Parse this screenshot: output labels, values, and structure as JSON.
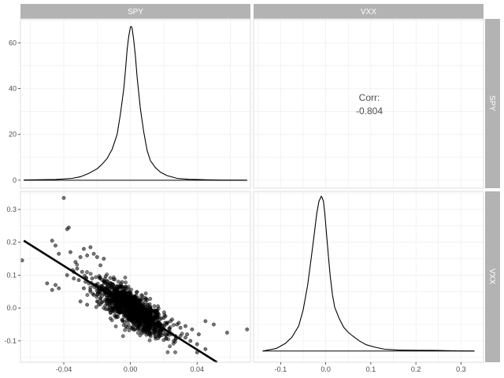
{
  "chart_data": {
    "type": "pairs",
    "variables": [
      "SPY",
      "VXX"
    ],
    "colors": {
      "strip": "#b3b3b3",
      "strip_text": "#ffffff",
      "panel_border": "#dddddd",
      "grid": "#ebebeb",
      "line": "#000000",
      "point": "#000000"
    },
    "panels": {
      "spy_density": {
        "type": "line",
        "xlim": [
          -0.066,
          0.072
        ],
        "ylim": [
          -3.5,
          70.5
        ],
        "yticks": [
          0,
          20,
          40,
          60
        ],
        "ytick_labels": [
          "0",
          "20",
          "40",
          "60"
        ],
        "x": [
          -0.064,
          -0.045,
          -0.035,
          -0.03,
          -0.025,
          -0.02,
          -0.017,
          -0.014,
          -0.011,
          -0.008,
          -0.006,
          -0.004,
          -0.003,
          -0.002,
          -0.001,
          0.0,
          0.0005,
          0.001,
          0.002,
          0.003,
          0.004,
          0.005,
          0.006,
          0.008,
          0.01,
          0.012,
          0.015,
          0.018,
          0.022,
          0.028,
          0.035,
          0.045,
          0.055,
          0.07
        ],
        "y": [
          0.1,
          0.3,
          0.8,
          1.5,
          3.0,
          5.0,
          7.0,
          9.5,
          13.5,
          20.0,
          29.0,
          40.0,
          48.0,
          57.0,
          63.0,
          67.0,
          67.2,
          66.5,
          61.0,
          54.0,
          45.0,
          38.0,
          31.0,
          21.0,
          13.0,
          8.5,
          5.5,
          3.5,
          2.0,
          0.8,
          0.4,
          0.2,
          0.05,
          0.0
        ]
      },
      "corr": {
        "label": "Corr:",
        "value": "-0.804"
      },
      "scatter": {
        "type": "scatter",
        "xlim": [
          -0.066,
          0.072
        ],
        "ylim": [
          -0.165,
          0.355
        ],
        "xticks": [
          -0.04,
          0.0,
          0.04
        ],
        "xtick_labels": [
          "-0.04",
          "0.00",
          "0.04"
        ],
        "yticks": [
          -0.1,
          0.0,
          0.1,
          0.2,
          0.3
        ],
        "ytick_labels": [
          "-0.1",
          "0.0",
          "0.1",
          "0.2",
          "0.3"
        ],
        "fit_line": {
          "x": [
            -0.064,
            0.052
          ],
          "y": [
            0.205,
            -0.165
          ]
        },
        "points_x": [
          -0.065,
          -0.04,
          -0.038,
          -0.037,
          -0.045,
          -0.047,
          -0.043,
          -0.036,
          -0.033,
          -0.03,
          -0.028,
          -0.032,
          -0.034,
          -0.026,
          -0.024,
          -0.022,
          -0.02,
          -0.018,
          -0.016,
          -0.045,
          -0.047,
          -0.043,
          -0.05,
          -0.038,
          -0.034,
          -0.031,
          -0.029,
          -0.027,
          -0.025,
          -0.023,
          -0.021,
          -0.019,
          -0.017,
          -0.015,
          -0.013,
          -0.011,
          -0.009,
          -0.007,
          -0.005,
          -0.003,
          -0.001,
          0.001,
          0.003,
          0.005,
          0.007,
          0.009,
          0.011,
          0.013,
          0.015,
          0.017,
          0.019,
          0.021,
          0.023,
          0.025,
          0.027,
          0.03,
          0.033,
          0.036,
          0.04,
          0.045,
          0.05,
          0.058,
          0.07,
          0.04,
          0.045,
          -0.022,
          -0.018,
          -0.014,
          -0.01,
          -0.006,
          -0.002,
          0.002,
          0.006,
          0.01,
          0.014,
          0.018,
          0.022,
          0.026,
          0.03,
          0.034,
          0.012,
          0.016,
          0.02,
          0.024,
          0.028,
          -0.028,
          -0.024,
          -0.02,
          -0.016,
          -0.012,
          -0.008,
          -0.004,
          0.0,
          0.004,
          0.008,
          -0.03,
          -0.026,
          -0.019,
          -0.015,
          -0.011,
          -0.007,
          -0.003,
          0.001,
          0.005,
          0.009,
          0.013,
          0.017,
          0.021,
          0.025,
          0.029,
          0.033,
          0.037,
          0.041,
          -0.012,
          -0.009,
          -0.006,
          -0.003,
          0.0,
          0.003,
          0.006,
          0.009,
          0.012,
          -0.01,
          -0.005,
          0.0,
          0.005,
          0.01,
          -0.008,
          -0.004,
          0.002,
          0.007
        ],
        "points_y": [
          0.145,
          0.335,
          0.24,
          0.245,
          0.19,
          0.205,
          0.165,
          0.17,
          0.14,
          0.155,
          0.18,
          0.12,
          0.11,
          0.16,
          0.185,
          0.165,
          0.155,
          0.13,
          0.15,
          0.07,
          0.055,
          0.06,
          0.075,
          0.1,
          0.09,
          0.085,
          0.11,
          0.08,
          0.075,
          0.09,
          0.07,
          0.065,
          0.06,
          0.055,
          0.05,
          0.045,
          0.035,
          0.025,
          0.02,
          0.01,
          0.005,
          -0.005,
          -0.01,
          -0.02,
          -0.025,
          -0.035,
          -0.04,
          -0.045,
          -0.055,
          -0.06,
          -0.065,
          -0.07,
          -0.075,
          -0.08,
          -0.085,
          -0.06,
          -0.09,
          -0.1,
          -0.11,
          -0.04,
          -0.05,
          -0.075,
          -0.065,
          -0.135,
          -0.125,
          0.04,
          0.03,
          0.015,
          0.035,
          0.0,
          -0.01,
          -0.03,
          -0.045,
          -0.06,
          -0.075,
          -0.05,
          -0.045,
          -0.1,
          -0.085,
          -0.08,
          -0.01,
          -0.02,
          -0.03,
          -0.04,
          -0.05,
          0.06,
          0.05,
          0.02,
          0.0,
          -0.015,
          0.045,
          0.03,
          0.015,
          -0.03,
          -0.04,
          0.02,
          0.01,
          0.01,
          0.02,
          0.015,
          0.01,
          0.005,
          -0.03,
          -0.035,
          -0.02,
          -0.015,
          -0.02,
          -0.025,
          -0.035,
          -0.045,
          -0.055,
          -0.065,
          -0.08,
          0.025,
          0.03,
          -0.01,
          0.02,
          0.01,
          0.0,
          -0.05,
          -0.01,
          -0.025,
          0.06,
          0.04,
          -0.02,
          0.03,
          -0.04,
          -0.005,
          0.01,
          -0.015,
          0.0
        ]
      },
      "vxx_density": {
        "type": "line",
        "xlim": [
          -0.16,
          0.35
        ],
        "xticks": [
          -0.1,
          0.0,
          0.1,
          0.2,
          0.3
        ],
        "xtick_labels": [
          "-0.1",
          "0.0",
          "0.1",
          "0.2",
          "0.3"
        ],
        "ylim": [
          -0.9,
          12.8
        ],
        "x": [
          -0.14,
          -0.11,
          -0.09,
          -0.075,
          -0.06,
          -0.05,
          -0.04,
          -0.032,
          -0.025,
          -0.02,
          -0.015,
          -0.01,
          -0.008,
          -0.005,
          -0.002,
          0.002,
          0.006,
          0.01,
          0.015,
          0.02,
          0.03,
          0.04,
          0.05,
          0.06,
          0.075,
          0.09,
          0.11,
          0.13,
          0.16,
          0.2,
          0.24,
          0.28,
          0.33
        ],
        "y": [
          0.0,
          0.2,
          0.6,
          1.1,
          2.0,
          3.3,
          5.3,
          7.5,
          9.5,
          11.0,
          12.0,
          12.4,
          12.3,
          12.0,
          11.0,
          9.3,
          7.6,
          6.0,
          4.5,
          3.5,
          2.6,
          1.9,
          1.5,
          1.2,
          0.8,
          0.5,
          0.3,
          0.15,
          0.08,
          0.06,
          0.05,
          0.02,
          0.0
        ]
      }
    }
  }
}
